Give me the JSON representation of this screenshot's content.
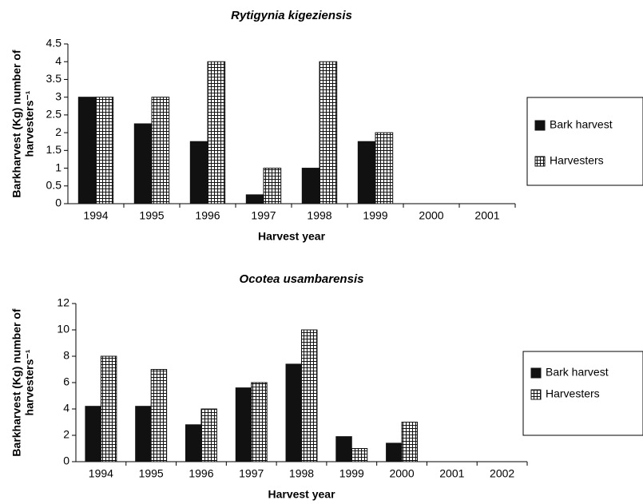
{
  "chart_data": [
    {
      "type": "bar",
      "title": "Rytigynia kigeziensis",
      "xlabel": "Harvest year",
      "ylabel": [
        "Barkharvest (Kg) number of",
        "harvesters⁻¹"
      ],
      "categories": [
        "1994",
        "1995",
        "1996",
        "1997",
        "1998",
        "1999",
        "2000",
        "2001"
      ],
      "series": [
        {
          "name": "Bark harvest",
          "color": "#111111",
          "pattern": "solid",
          "values": [
            3,
            2.25,
            1.75,
            0.25,
            1,
            1.75,
            null,
            null
          ]
        },
        {
          "name": "Harvesters",
          "color": "#111111",
          "pattern": "grid",
          "values": [
            3,
            3,
            4,
            1,
            4,
            2,
            null,
            null
          ]
        }
      ],
      "ylim": [
        0,
        4.5
      ],
      "yticks": [
        0,
        0.5,
        1,
        1.5,
        2,
        2.5,
        3,
        3.5,
        4,
        4.5
      ],
      "legend": "right"
    },
    {
      "type": "bar",
      "title": "Ocotea usambarensis",
      "xlabel": "Harvest year",
      "ylabel": [
        "Barkharvest (Kg) number of",
        "harvesters⁻¹"
      ],
      "categories": [
        "1994",
        "1995",
        "1996",
        "1997",
        "1998",
        "1999",
        "2000",
        "2001",
        "2002"
      ],
      "series": [
        {
          "name": "Bark harvest",
          "color": "#111111",
          "pattern": "solid",
          "values": [
            4.2,
            4.2,
            2.8,
            5.6,
            7.4,
            1.9,
            1.4,
            null,
            null
          ]
        },
        {
          "name": "Harvesters",
          "color": "#111111",
          "pattern": "grid",
          "values": [
            8,
            7,
            4,
            6,
            10,
            1,
            3,
            null,
            null
          ]
        }
      ],
      "ylim": [
        0,
        12
      ],
      "yticks": [
        0,
        2,
        4,
        6,
        8,
        10,
        12
      ],
      "legend": "right"
    }
  ]
}
